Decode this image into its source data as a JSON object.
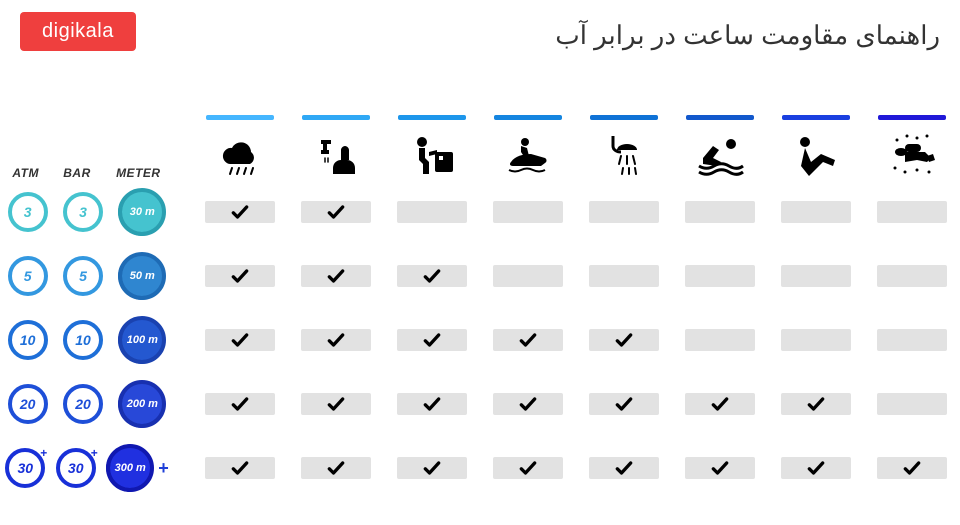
{
  "logo": "digikala",
  "logo_bg": "#ef3f3e",
  "title": "راهنمای مقاومت ساعت در برابر آب",
  "unit_headers": {
    "atm": "ATM",
    "bar": "BAR",
    "meter": "METER"
  },
  "activities": [
    {
      "name": "rain",
      "bar_color": "#45b6ff"
    },
    {
      "name": "handwash",
      "bar_color": "#2fa8f5"
    },
    {
      "name": "dishwash",
      "bar_color": "#1d96eb"
    },
    {
      "name": "jetski",
      "bar_color": "#1485e0"
    },
    {
      "name": "shower",
      "bar_color": "#0f72d6"
    },
    {
      "name": "swimming",
      "bar_color": "#1258cc"
    },
    {
      "name": "snorkel",
      "bar_color": "#1a3fe0"
    },
    {
      "name": "scuba",
      "bar_color": "#2018d8"
    }
  ],
  "rows": [
    {
      "atm": "3",
      "bar": "3",
      "meter": "30 m",
      "outline_color": "#45c3cf",
      "fill_bg": "#45c3cf",
      "fill_border": "#2a9fb0",
      "plus": false,
      "checks": [
        true,
        true,
        false,
        false,
        false,
        false,
        false,
        false
      ]
    },
    {
      "atm": "5",
      "bar": "5",
      "meter": "50 m",
      "outline_color": "#3398e0",
      "fill_bg": "#2f86d0",
      "fill_border": "#1e6bb5",
      "plus": false,
      "checks": [
        true,
        true,
        true,
        false,
        false,
        false,
        false,
        false
      ]
    },
    {
      "atm": "10",
      "bar": "10",
      "meter": "100 m",
      "outline_color": "#1e6fd8",
      "fill_bg": "#2458d0",
      "fill_border": "#1a42b0",
      "plus": false,
      "checks": [
        true,
        true,
        true,
        true,
        true,
        false,
        false,
        false
      ]
    },
    {
      "atm": "20",
      "bar": "20",
      "meter": "200 m",
      "outline_color": "#1e4fd8",
      "fill_bg": "#2848d8",
      "fill_border": "#1830b0",
      "plus": false,
      "checks": [
        true,
        true,
        true,
        true,
        true,
        true,
        true,
        false
      ]
    },
    {
      "atm": "30",
      "bar": "30",
      "meter": "300 m",
      "outline_color": "#1830d8",
      "fill_bg": "#2030e0",
      "fill_border": "#1018b0",
      "plus": true,
      "checks": [
        true,
        true,
        true,
        true,
        true,
        true,
        true,
        true
      ]
    }
  ],
  "cell_bg": "#e2e2e2",
  "check_color": "#000000",
  "icon_color": "#000000",
  "background": "#ffffff"
}
